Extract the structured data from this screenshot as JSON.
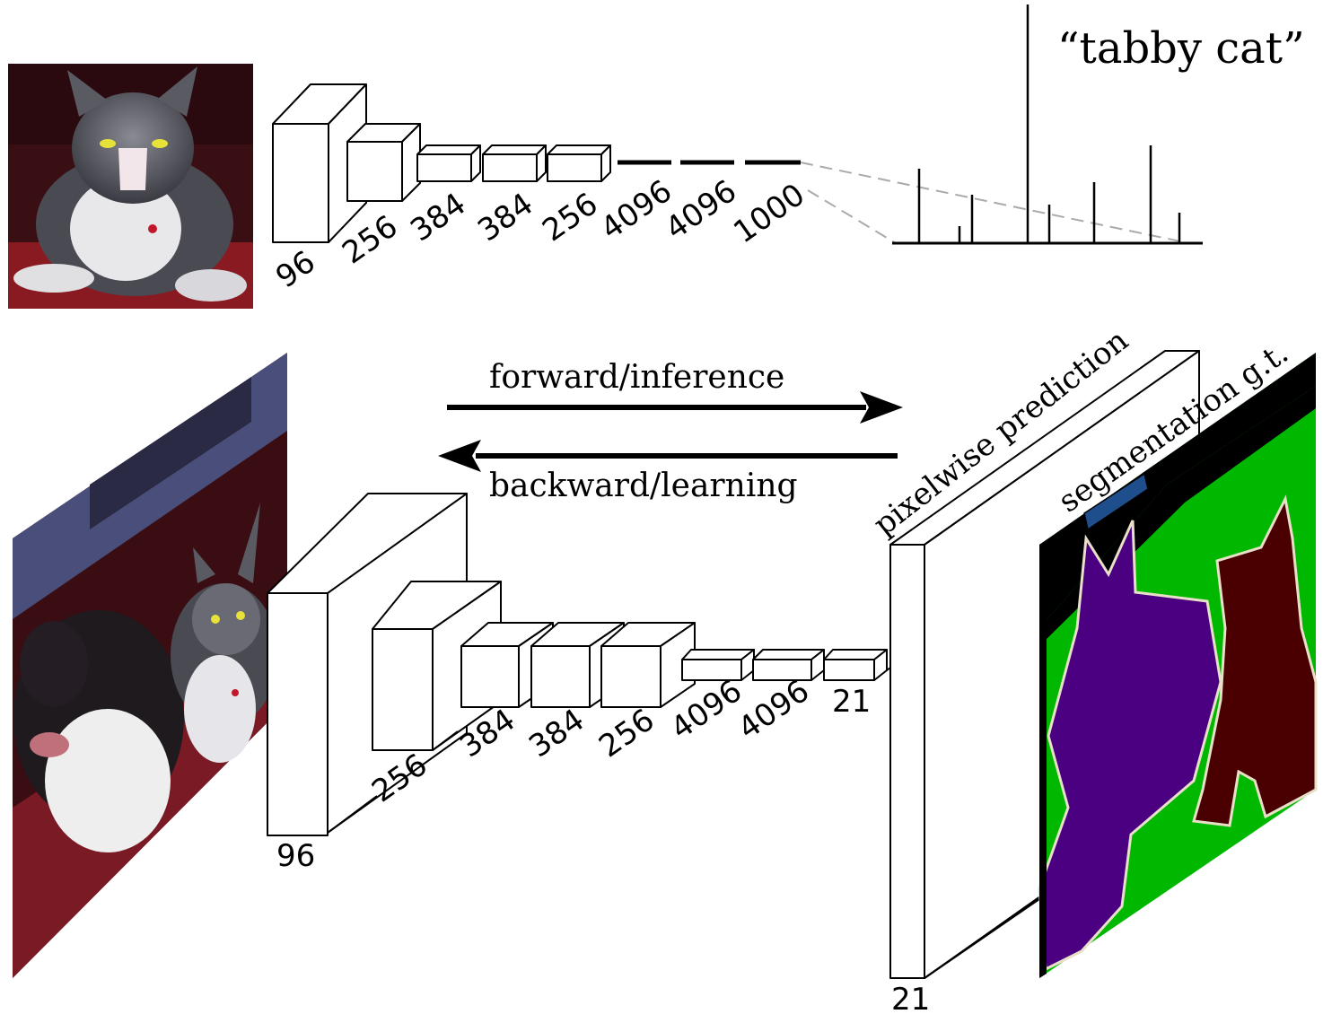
{
  "top_network": {
    "output_label": "“tabby cat”",
    "layer_labels": [
      "96",
      "256",
      "384",
      "384",
      "256",
      "4096",
      "4096",
      "1000"
    ]
  },
  "bottom_network": {
    "forward_label": "forward/inference",
    "backward_label": "backward/learning",
    "prediction_label": "pixelwise prediction",
    "gt_label": "segmentation g.t.",
    "layer_labels": [
      "96",
      "256",
      "384",
      "384",
      "256",
      "4096",
      "4096",
      "21"
    ],
    "output_depth_label": "21"
  },
  "colors": {
    "segmentation_dog": "#4b0082",
    "segmentation_cat": "#4a0000",
    "segmentation_background": "#00b800",
    "segmentation_void": "#000000",
    "gt_tab": "#1f4e8c"
  },
  "icons": [
    "cat-photo",
    "cat-dog-photo",
    "segmentation-map"
  ]
}
